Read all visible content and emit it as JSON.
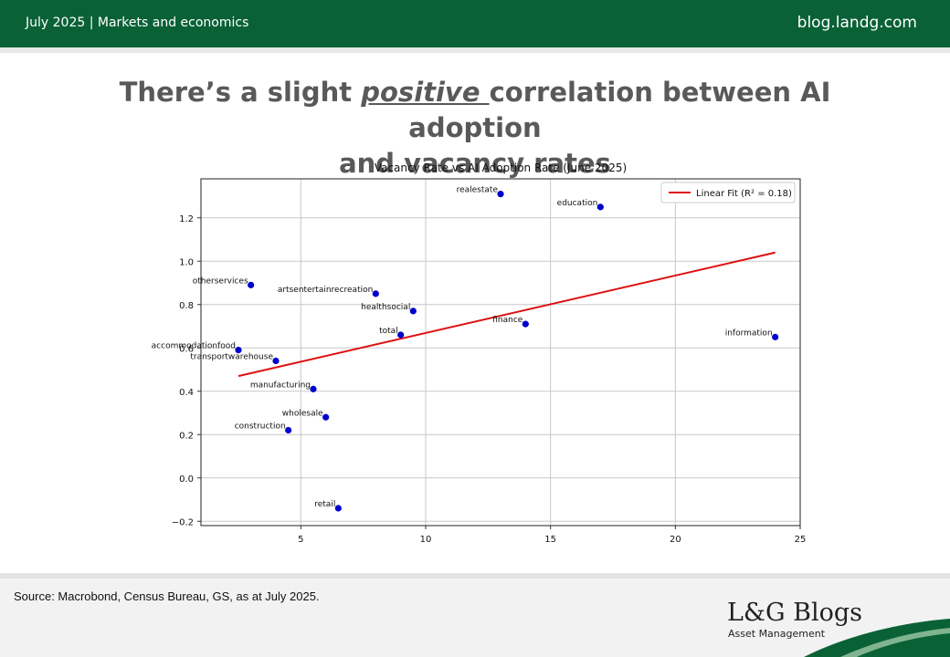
{
  "header": {
    "date_section": "July 2025 | Markets and economics",
    "site": "blog.landg.com"
  },
  "headline": {
    "pre": "There’s a slight ",
    "emph": "positive ",
    "post1": "correlation between AI adoption",
    "line2": "and vacancy rates"
  },
  "colors": {
    "brand_green": "#0a6136",
    "point": "#0000cc",
    "fit_line": "#dd1111"
  },
  "chart_data": {
    "type": "scatter",
    "title": "Vacancy Rate vs AI Adoption Rate (June 2025)",
    "xlabel": "",
    "ylabel": "",
    "xlim": [
      1,
      25
    ],
    "ylim": [
      -0.22,
      1.38
    ],
    "xticks": [
      5,
      10,
      15,
      20,
      25
    ],
    "yticks": [
      -0.2,
      0.0,
      0.2,
      0.4,
      0.6,
      0.8,
      1.0,
      1.2
    ],
    "grid": true,
    "legend_position": "top-right",
    "points": [
      {
        "label": "realestate",
        "x": 13.0,
        "y": 1.31
      },
      {
        "label": "education",
        "x": 17.0,
        "y": 1.25
      },
      {
        "label": "otherservices",
        "x": 3.0,
        "y": 0.89
      },
      {
        "label": "artsentertainrecreation",
        "x": 8.0,
        "y": 0.85
      },
      {
        "label": "healthsocial",
        "x": 9.5,
        "y": 0.77
      },
      {
        "label": "finance",
        "x": 14.0,
        "y": 0.71
      },
      {
        "label": "total",
        "x": 9.0,
        "y": 0.66
      },
      {
        "label": "information",
        "x": 24.0,
        "y": 0.65
      },
      {
        "label": "accommodationfood",
        "x": 2.5,
        "y": 0.59
      },
      {
        "label": "transportwarehouse",
        "x": 4.0,
        "y": 0.54
      },
      {
        "label": "manufacturing",
        "x": 5.5,
        "y": 0.41
      },
      {
        "label": "wholesale",
        "x": 6.0,
        "y": 0.28
      },
      {
        "label": "construction",
        "x": 4.5,
        "y": 0.22
      },
      {
        "label": "retail",
        "x": 6.5,
        "y": -0.14
      }
    ],
    "fit": {
      "name": "Linear Fit (R² = 0.18)",
      "x": [
        2.5,
        24.0
      ],
      "y": [
        0.47,
        1.04
      ]
    }
  },
  "footer": {
    "source": "Source: Macrobond, Census Bureau, GS, as at July 2025.",
    "brand": "L&G Blogs",
    "brand_sub": "Asset Management"
  }
}
